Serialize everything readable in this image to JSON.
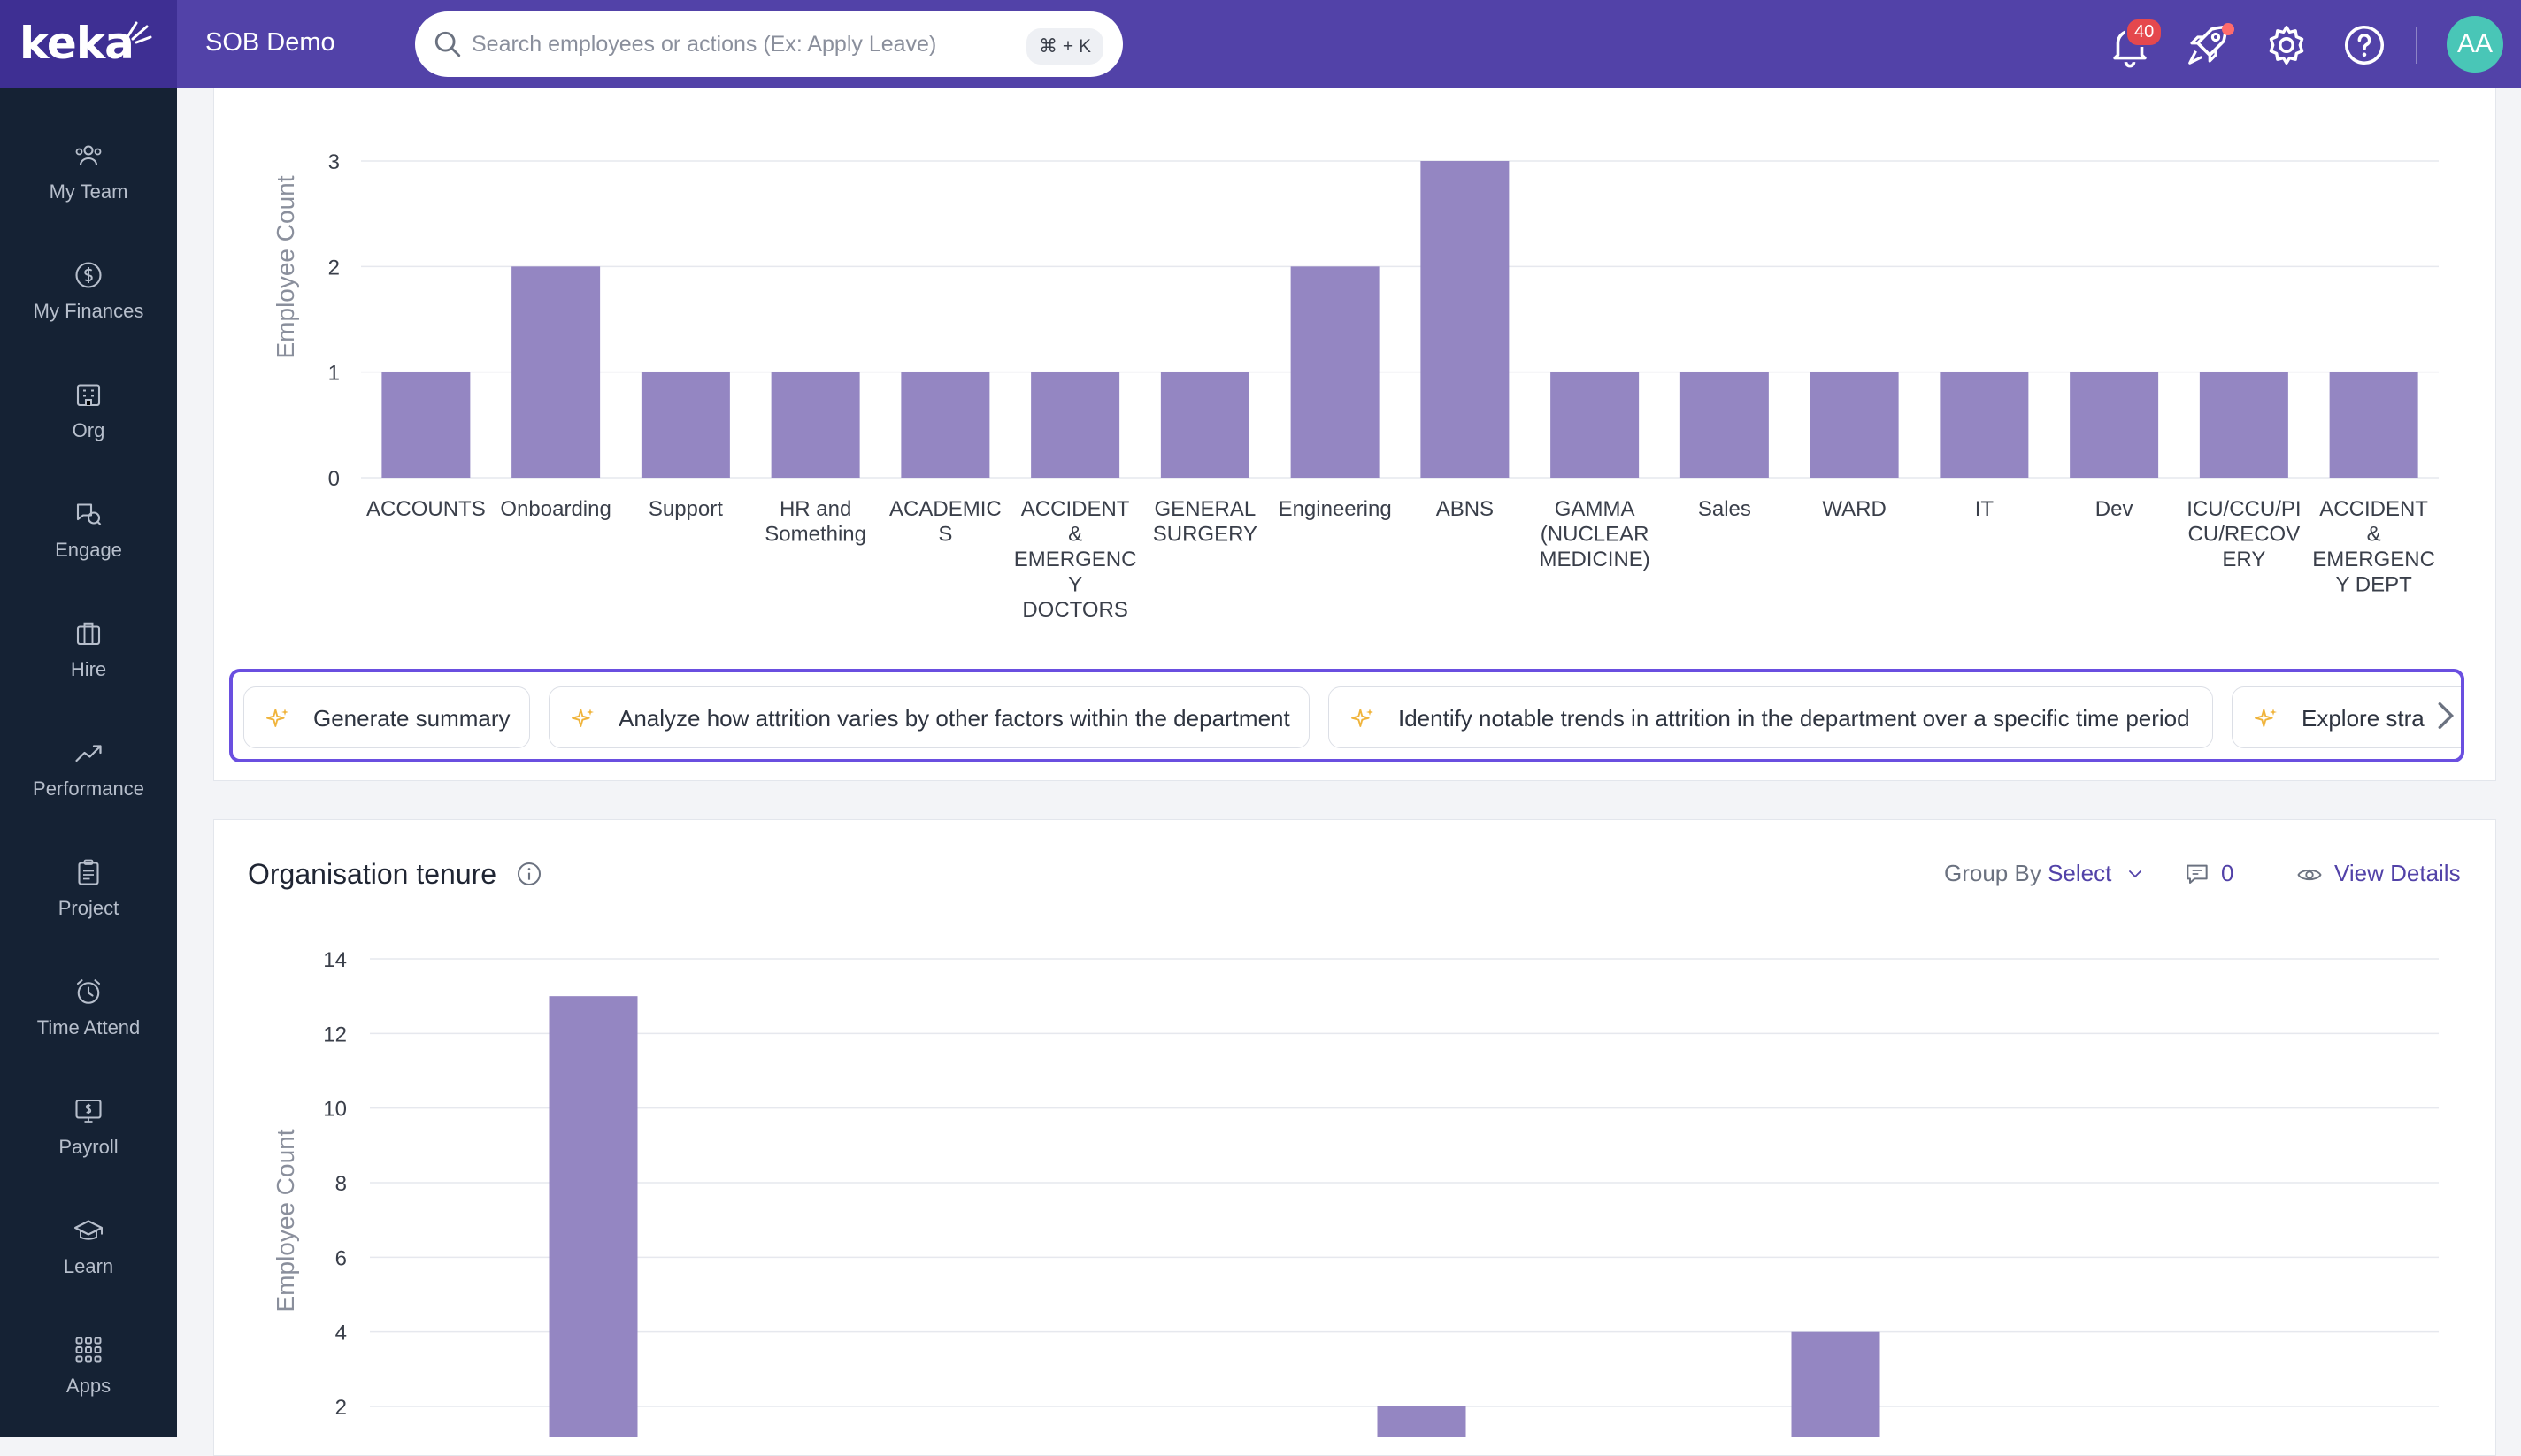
{
  "app": {
    "logo_text": "keka",
    "org_name": "SOB Demo",
    "search_placeholder": "Search employees or actions (Ex: Apply Leave)",
    "search_shortcut": "⌘ + K",
    "notification_count": "40",
    "avatar_initials": "AA"
  },
  "sidebar": {
    "items": [
      {
        "label": "My Team",
        "icon": "team-icon"
      },
      {
        "label": "My Finances",
        "icon": "finances-icon"
      },
      {
        "label": "Org",
        "icon": "org-icon"
      },
      {
        "label": "Engage",
        "icon": "engage-icon"
      },
      {
        "label": "Hire",
        "icon": "hire-icon"
      },
      {
        "label": "Performance",
        "icon": "performance-icon"
      },
      {
        "label": "Project",
        "icon": "project-icon"
      },
      {
        "label": "Time Attend",
        "icon": "time-attend-icon"
      },
      {
        "label": "Payroll",
        "icon": "payroll-icon"
      },
      {
        "label": "Learn",
        "icon": "learn-icon"
      },
      {
        "label": "Apps",
        "icon": "apps-icon"
      }
    ]
  },
  "chips": [
    {
      "label": "Generate summary"
    },
    {
      "label": "Analyze how attrition varies by other factors within the department"
    },
    {
      "label": "Identify notable trends in attrition in the department over a specific time period"
    },
    {
      "label": "Explore stra"
    }
  ],
  "tenure_card": {
    "title": "Organisation tenure",
    "group_by_label": "Group By",
    "group_by_value": "Select",
    "comment_count": "0",
    "view_details": "View Details"
  },
  "chart_data": [
    {
      "type": "bar",
      "ylabel": "Employee Count",
      "ylim": [
        0,
        3
      ],
      "yticks": [
        "0",
        "1",
        "2",
        "3"
      ],
      "categories": [
        [
          "ACCOUNTS"
        ],
        [
          "Onboarding"
        ],
        [
          "Support"
        ],
        [
          "HR and",
          "Something"
        ],
        [
          "ACADEMIC",
          "S"
        ],
        [
          "ACCIDENT",
          "&",
          "EMERGENC",
          "Y",
          "DOCTORS"
        ],
        [
          "GENERAL",
          "SURGERY"
        ],
        [
          "Engineering"
        ],
        [
          "ABNS"
        ],
        [
          "GAMMA",
          "(NUCLEAR",
          "MEDICINE)"
        ],
        [
          "Sales"
        ],
        [
          "WARD"
        ],
        [
          "IT"
        ],
        [
          "Dev"
        ],
        [
          "ICU/CCU/PI",
          "CU/RECOV",
          "ERY"
        ],
        [
          "ACCIDENT",
          "&",
          "EMERGENC",
          "Y DEPT"
        ]
      ],
      "values": [
        1,
        2,
        1,
        1,
        1,
        1,
        1,
        2,
        3,
        1,
        1,
        1,
        1,
        1,
        1,
        1
      ],
      "color": "#9486c2",
      "grid": true
    },
    {
      "type": "bar",
      "title": "Organisation tenure",
      "ylabel": "Employee Count",
      "ylim": [
        0,
        14
      ],
      "yticks": [
        "2",
        "4",
        "6",
        "8",
        "10",
        "12",
        "14"
      ],
      "visible_bars": [
        {
          "slot": 2,
          "value": 13
        },
        {
          "slot": 10,
          "value": 2
        },
        {
          "slot": 14,
          "value": 4
        }
      ],
      "color": "#9486c2",
      "grid": true
    }
  ]
}
